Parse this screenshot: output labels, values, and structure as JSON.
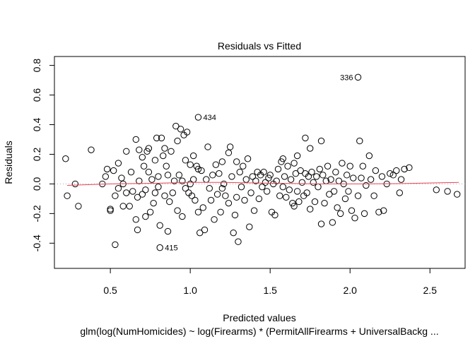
{
  "chart_data": {
    "type": "scatter",
    "title": "Residuals vs Fitted",
    "xlabel": "Predicted values",
    "ylabel": "Residuals",
    "caption": "glm(log(NumHomicides) ~ log(Firearms) * (PermitAllFirearms + UniversalBackg ...",
    "xlim": [
      0.15,
      2.72
    ],
    "ylim": [
      -0.57,
      0.86
    ],
    "x_ticks": [
      "0.5",
      "1.0",
      "1.5",
      "2.0",
      "2.5"
    ],
    "x_tick_values": [
      0.5,
      1.0,
      1.5,
      2.0,
      2.5
    ],
    "y_ticks": [
      "-0.4",
      "-0.2",
      "0.0",
      "0.2",
      "0.4",
      "0.6",
      "0.8"
    ],
    "y_tick_values": [
      -0.4,
      -0.2,
      0.0,
      0.2,
      0.4,
      0.6,
      0.8
    ],
    "zero_line": {
      "y": 0,
      "style": "dotted",
      "color": "#aaaaaa"
    },
    "smoother": {
      "color": "#e8455d",
      "x": [
        0.23,
        0.5,
        0.8,
        1.0,
        1.2,
        1.5,
        1.8,
        2.0,
        2.3,
        2.68
      ],
      "y": [
        -0.01,
        0.0,
        0.005,
        0.01,
        0.01,
        0.005,
        0.0,
        0.0,
        0.002,
        0.01
      ]
    },
    "labeled_points": [
      {
        "label": "336",
        "x": 2.05,
        "y": 0.72
      },
      {
        "label": "434",
        "x": 1.05,
        "y": 0.45
      },
      {
        "label": "415",
        "x": 0.81,
        "y": -0.43
      }
    ],
    "points": [
      [
        0.22,
        0.17
      ],
      [
        0.23,
        -0.08
      ],
      [
        0.28,
        0.0
      ],
      [
        0.3,
        -0.15
      ],
      [
        0.38,
        0.23
      ],
      [
        0.45,
        0.0
      ],
      [
        0.47,
        0.05
      ],
      [
        0.48,
        0.1
      ],
      [
        0.5,
        -0.17
      ],
      [
        0.5,
        -0.18
      ],
      [
        0.52,
        0.09
      ],
      [
        0.53,
        -0.08
      ],
      [
        0.53,
        -0.41
      ],
      [
        0.55,
        0.14
      ],
      [
        0.55,
        -0.03
      ],
      [
        0.57,
        0.04
      ],
      [
        0.58,
        -0.15
      ],
      [
        0.58,
        0.0
      ],
      [
        0.6,
        -0.06
      ],
      [
        0.6,
        0.22
      ],
      [
        0.62,
        -0.15
      ],
      [
        0.63,
        0.08
      ],
      [
        0.64,
        -0.05
      ],
      [
        0.66,
        0.3
      ],
      [
        0.66,
        -0.24
      ],
      [
        0.67,
        -0.09
      ],
      [
        0.67,
        -0.31
      ],
      [
        0.68,
        0.23
      ],
      [
        0.68,
        0.02
      ],
      [
        0.7,
        0.18
      ],
      [
        0.7,
        -0.07
      ],
      [
        0.71,
        0.12
      ],
      [
        0.72,
        -0.04
      ],
      [
        0.72,
        -0.22
      ],
      [
        0.73,
        0.22
      ],
      [
        0.74,
        0.08
      ],
      [
        0.74,
        0.24
      ],
      [
        0.75,
        -0.19
      ],
      [
        0.76,
        0.03
      ],
      [
        0.77,
        -0.13
      ],
      [
        0.78,
        0.16
      ],
      [
        0.78,
        -0.06
      ],
      [
        0.79,
        0.31
      ],
      [
        0.8,
        0.05
      ],
      [
        0.8,
        -0.02
      ],
      [
        0.81,
        -0.28
      ],
      [
        0.82,
        0.31
      ],
      [
        0.83,
        0.19
      ],
      [
        0.84,
        -0.08
      ],
      [
        0.84,
        0.24
      ],
      [
        0.85,
        0.12
      ],
      [
        0.86,
        -0.32
      ],
      [
        0.86,
        0.06
      ],
      [
        0.87,
        -0.12
      ],
      [
        0.88,
        0.22
      ],
      [
        0.89,
        -0.06
      ],
      [
        0.9,
        0.02
      ],
      [
        0.91,
        0.39
      ],
      [
        0.92,
        0.29
      ],
      [
        0.92,
        -0.18
      ],
      [
        0.93,
        0.06
      ],
      [
        0.94,
        0.37
      ],
      [
        0.95,
        0.02
      ],
      [
        0.95,
        -0.22
      ],
      [
        0.96,
        0.33
      ],
      [
        0.97,
        0.16
      ],
      [
        0.97,
        -0.03
      ],
      [
        0.98,
        0.35
      ],
      [
        0.99,
        -0.06
      ],
      [
        1.0,
        0.0
      ],
      [
        1.0,
        0.13
      ],
      [
        1.01,
        -0.08
      ],
      [
        1.02,
        0.03
      ],
      [
        1.02,
        0.19
      ],
      [
        1.03,
        -0.11
      ],
      [
        1.04,
        0.12
      ],
      [
        1.05,
        0.1
      ],
      [
        1.05,
        -0.19
      ],
      [
        1.06,
        -0.33
      ],
      [
        1.07,
        0.09
      ],
      [
        1.08,
        -0.16
      ],
      [
        1.09,
        -0.31
      ],
      [
        1.1,
        0.03
      ],
      [
        1.11,
        0.25
      ],
      [
        1.12,
        -0.03
      ],
      [
        1.13,
        -0.11
      ],
      [
        1.14,
        0.06
      ],
      [
        1.15,
        -0.24
      ],
      [
        1.16,
        0.13
      ],
      [
        1.17,
        -0.07
      ],
      [
        1.18,
        0.07
      ],
      [
        1.19,
        -0.19
      ],
      [
        1.2,
        0.15
      ],
      [
        1.2,
        -0.03
      ],
      [
        1.21,
        0.0
      ],
      [
        1.22,
        -0.08
      ],
      [
        1.24,
        0.21
      ],
      [
        1.24,
        -0.13
      ],
      [
        1.25,
        0.25
      ],
      [
        1.26,
        0.05
      ],
      [
        1.27,
        -0.33
      ],
      [
        1.28,
        -0.21
      ],
      [
        1.29,
        0.15
      ],
      [
        1.29,
        -0.09
      ],
      [
        1.3,
        -0.39
      ],
      [
        1.31,
        0.08
      ],
      [
        1.32,
        -0.02
      ],
      [
        1.33,
        0.12
      ],
      [
        1.34,
        -0.11
      ],
      [
        1.35,
        0.03
      ],
      [
        1.36,
        0.17
      ],
      [
        1.37,
        -0.29
      ],
      [
        1.38,
        -0.06
      ],
      [
        1.39,
        0.05
      ],
      [
        1.4,
        -0.18
      ],
      [
        1.41,
        0.02
      ],
      [
        1.42,
        0.08
      ],
      [
        1.43,
        -0.1
      ],
      [
        1.44,
        0.06
      ],
      [
        1.45,
        -0.02
      ],
      [
        1.46,
        0.08
      ],
      [
        1.47,
        0.01
      ],
      [
        1.48,
        -0.05
      ],
      [
        1.49,
        0.04
      ],
      [
        1.5,
        0.06
      ],
      [
        1.51,
        -0.19
      ],
      [
        1.52,
        0.0
      ],
      [
        1.53,
        -0.21
      ],
      [
        1.54,
        0.02
      ],
      [
        1.55,
        0.1
      ],
      [
        1.56,
        -0.08
      ],
      [
        1.57,
        0.15
      ],
      [
        1.58,
        -0.02
      ],
      [
        1.58,
        0.17
      ],
      [
        1.59,
        0.05
      ],
      [
        1.6,
        -0.09
      ],
      [
        1.61,
        0.12
      ],
      [
        1.62,
        -0.04
      ],
      [
        1.63,
        0.03
      ],
      [
        1.64,
        -0.13
      ],
      [
        1.65,
        0.14
      ],
      [
        1.65,
        -0.15
      ],
      [
        1.66,
        0.07
      ],
      [
        1.67,
        -0.05
      ],
      [
        1.67,
        0.19
      ],
      [
        1.68,
        -0.12
      ],
      [
        1.69,
        0.09
      ],
      [
        1.7,
        0.01
      ],
      [
        1.71,
        -0.08
      ],
      [
        1.72,
        0.31
      ],
      [
        1.72,
        0.07
      ],
      [
        1.73,
        -0.06
      ],
      [
        1.74,
        0.05
      ],
      [
        1.75,
        0.24
      ],
      [
        1.75,
        -0.17
      ],
      [
        1.76,
        0.08
      ],
      [
        1.77,
        0.01
      ],
      [
        1.78,
        -0.12
      ],
      [
        1.79,
        0.05
      ],
      [
        1.8,
        -0.02
      ],
      [
        1.81,
        0.1
      ],
      [
        1.82,
        0.29
      ],
      [
        1.82,
        -0.27
      ],
      [
        1.83,
        0.06
      ],
      [
        1.84,
        -0.13
      ],
      [
        1.85,
        0.02
      ],
      [
        1.86,
        0.12
      ],
      [
        1.87,
        -0.07
      ],
      [
        1.88,
        0.03
      ],
      [
        1.89,
        -0.26
      ],
      [
        1.9,
        -0.05
      ],
      [
        1.91,
        0.08
      ],
      [
        1.92,
        -0.16
      ],
      [
        1.93,
        0.02
      ],
      [
        1.94,
        -0.2
      ],
      [
        1.95,
        0.14
      ],
      [
        1.96,
        0.0
      ],
      [
        1.97,
        -0.1
      ],
      [
        1.98,
        0.06
      ],
      [
        1.99,
        -0.05
      ],
      [
        2.0,
        0.12
      ],
      [
        2.01,
        -0.18
      ],
      [
        2.02,
        0.04
      ],
      [
        2.03,
        -0.23
      ],
      [
        2.05,
        -0.08
      ],
      [
        2.06,
        0.29
      ],
      [
        2.07,
        0.04
      ],
      [
        2.08,
        0.12
      ],
      [
        2.09,
        -0.2
      ],
      [
        2.1,
        -0.01
      ],
      [
        2.12,
        0.19
      ],
      [
        2.13,
        0.03
      ],
      [
        2.15,
        -0.08
      ],
      [
        2.16,
        0.09
      ],
      [
        2.18,
        -0.19
      ],
      [
        2.2,
        0.05
      ],
      [
        2.21,
        -0.18
      ],
      [
        2.23,
        0.0
      ],
      [
        2.25,
        0.07
      ],
      [
        2.27,
        0.06
      ],
      [
        2.29,
        0.09
      ],
      [
        2.31,
        -0.06
      ],
      [
        2.32,
        0.03
      ],
      [
        2.34,
        0.1
      ],
      [
        2.37,
        0.11
      ],
      [
        2.54,
        -0.04
      ],
      [
        2.61,
        -0.05
      ],
      [
        2.67,
        -0.07
      ]
    ]
  }
}
